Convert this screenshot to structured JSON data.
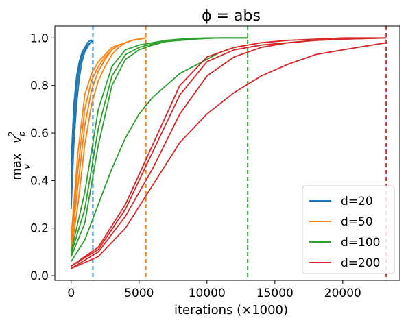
{
  "chart_data": {
    "type": "line",
    "title": "ϕ = abs",
    "xlabel": "iterations (×1000)",
    "ylabel": "max v p 2",
    "ylabel_parts": {
      "main": "max",
      "sub_under": "v",
      "var": "v",
      "sup": "2",
      "sub": "p"
    },
    "xlim": [
      -1200,
      24200
    ],
    "ylim": [
      -0.02,
      1.05
    ],
    "x_ticks": [
      0,
      5000,
      10000,
      15000,
      20000
    ],
    "x_tick_labels": [
      "0",
      "5000",
      "10000",
      "15000",
      "20000"
    ],
    "y_ticks": [
      0.0,
      0.2,
      0.4,
      0.6,
      0.8,
      1.0
    ],
    "y_tick_labels": [
      "0.0",
      "0.2",
      "0.4",
      "0.6",
      "0.8",
      "1.0"
    ],
    "grid": false,
    "legend_position": "bottom-right",
    "series": [
      {
        "name": "d=20",
        "color": "#1f77b4",
        "vline": 1600,
        "runs": [
          {
            "x": [
              0,
              200,
              400,
              600,
              800,
              1000,
              1200,
              1400,
              1600
            ],
            "y": [
              0.28,
              0.55,
              0.72,
              0.83,
              0.9,
              0.94,
              0.96,
              0.98,
              0.99
            ]
          },
          {
            "x": [
              0,
              200,
              400,
              600,
              800,
              1000,
              1200,
              1400,
              1600
            ],
            "y": [
              0.35,
              0.62,
              0.78,
              0.87,
              0.92,
              0.95,
              0.97,
              0.98,
              0.99
            ]
          },
          {
            "x": [
              0,
              200,
              400,
              600,
              800,
              1000,
              1200,
              1400,
              1600
            ],
            "y": [
              0.42,
              0.68,
              0.82,
              0.89,
              0.93,
              0.96,
              0.97,
              0.98,
              0.99
            ]
          },
          {
            "x": [
              0,
              200,
              400,
              600,
              800,
              1000,
              1200,
              1400,
              1600
            ],
            "y": [
              0.48,
              0.72,
              0.84,
              0.9,
              0.94,
              0.96,
              0.98,
              0.99,
              0.99
            ]
          }
        ]
      },
      {
        "name": "d=50",
        "color": "#ff7f0e",
        "vline": 5500,
        "runs": [
          {
            "x": [
              0,
              500,
              1000,
              1500,
              2000,
              2500,
              3000,
              3500,
              4000,
              4500,
              5000,
              5500
            ],
            "y": [
              0.1,
              0.3,
              0.55,
              0.72,
              0.82,
              0.88,
              0.93,
              0.96,
              0.98,
              0.99,
              0.995,
              1.0
            ]
          },
          {
            "x": [
              0,
              500,
              1000,
              1500,
              2000,
              2500,
              3000,
              3500,
              4000,
              4500,
              5000,
              5500
            ],
            "y": [
              0.12,
              0.38,
              0.63,
              0.78,
              0.86,
              0.91,
              0.95,
              0.97,
              0.98,
              0.99,
              0.995,
              1.0
            ]
          },
          {
            "x": [
              0,
              500,
              1000,
              1500,
              2000,
              2500,
              3000,
              3500,
              4000,
              4500,
              5000,
              5500
            ],
            "y": [
              0.14,
              0.45,
              0.7,
              0.82,
              0.88,
              0.92,
              0.95,
              0.97,
              0.98,
              0.99,
              0.995,
              1.0
            ]
          },
          {
            "x": [
              0,
              500,
              1000,
              1500,
              2000,
              2500,
              3000,
              3500,
              4000,
              4500,
              5000,
              5500
            ],
            "y": [
              0.16,
              0.52,
              0.76,
              0.85,
              0.9,
              0.93,
              0.96,
              0.97,
              0.98,
              0.99,
              0.995,
              1.0
            ]
          }
        ]
      },
      {
        "name": "d=100",
        "color": "#2ca02c",
        "vline": 13000,
        "runs": [
          {
            "x": [
              0,
              1000,
              2000,
              3000,
              4000,
              5000,
              6000,
              7000,
              8000,
              9000,
              10000,
              11000,
              12000,
              13000
            ],
            "y": [
              0.06,
              0.15,
              0.3,
              0.45,
              0.58,
              0.68,
              0.75,
              0.8,
              0.85,
              0.88,
              0.91,
              0.94,
              0.96,
              0.97
            ]
          },
          {
            "x": [
              0,
              1000,
              2000,
              3000,
              4000,
              5000,
              6000,
              7000,
              8000,
              9000,
              10000,
              11000,
              12000,
              13000
            ],
            "y": [
              0.08,
              0.22,
              0.55,
              0.8,
              0.91,
              0.95,
              0.97,
              0.985,
              0.99,
              0.995,
              0.998,
              1.0,
              1.0,
              1.0
            ]
          },
          {
            "x": [
              0,
              1000,
              2000,
              3000,
              4000,
              5000,
              6000,
              7000,
              8000,
              9000,
              10000,
              11000,
              12000,
              13000
            ],
            "y": [
              0.09,
              0.28,
              0.62,
              0.84,
              0.93,
              0.96,
              0.975,
              0.985,
              0.99,
              0.995,
              0.998,
              1.0,
              1.0,
              1.0
            ]
          },
          {
            "x": [
              0,
              1000,
              2000,
              3000,
              4000,
              5000,
              6000,
              7000,
              8000,
              9000,
              10000,
              11000,
              12000,
              13000
            ],
            "y": [
              0.1,
              0.35,
              0.7,
              0.88,
              0.95,
              0.97,
              0.98,
              0.99,
              0.995,
              0.998,
              1.0,
              1.0,
              1.0,
              1.0
            ]
          }
        ]
      },
      {
        "name": "d=200",
        "color": "#d62728",
        "vline": 23200,
        "runs": [
          {
            "x": [
              0,
              2000,
              4000,
              6000,
              8000,
              10000,
              12000,
              14000,
              16000,
              18000,
              20000,
              23200
            ],
            "y": [
              0.03,
              0.08,
              0.2,
              0.38,
              0.56,
              0.68,
              0.77,
              0.84,
              0.89,
              0.93,
              0.95,
              0.98
            ]
          },
          {
            "x": [
              0,
              2000,
              4000,
              6000,
              8000,
              10000,
              12000,
              14000,
              16000,
              18000,
              20000,
              23200
            ],
            "y": [
              0.03,
              0.1,
              0.25,
              0.45,
              0.68,
              0.84,
              0.92,
              0.96,
              0.98,
              0.99,
              0.995,
              1.0
            ]
          },
          {
            "x": [
              0,
              2000,
              4000,
              6000,
              8000,
              10000,
              12000,
              14000,
              16000,
              18000,
              20000,
              23200
            ],
            "y": [
              0.04,
              0.11,
              0.28,
              0.52,
              0.76,
              0.9,
              0.95,
              0.97,
              0.98,
              0.99,
              0.995,
              1.0
            ]
          },
          {
            "x": [
              0,
              2000,
              4000,
              6000,
              8000,
              10000,
              12000,
              14000,
              16000,
              18000,
              20000,
              23200
            ],
            "y": [
              0.04,
              0.12,
              0.3,
              0.55,
              0.8,
              0.92,
              0.96,
              0.98,
              0.99,
              0.995,
              1.0,
              1.0
            ]
          }
        ]
      }
    ]
  }
}
